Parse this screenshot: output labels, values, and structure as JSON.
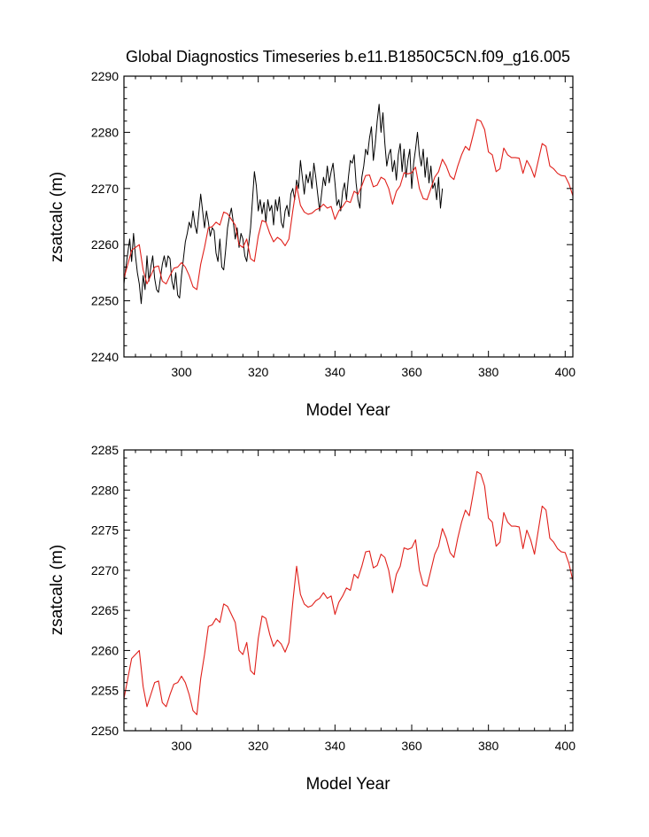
{
  "figure_title": "Global Diagnostics Timeseries b.e11.B1850C5CN.f09_g16.005",
  "colors": {
    "annual": "#000000",
    "smoothed": "#e0201b",
    "frame": "#000000"
  },
  "chart_data": [
    {
      "type": "line",
      "title": "Global Diagnostics Timeseries b.e11.B1850C5CN.f09_g16.005",
      "xlabel": "Model Year",
      "ylabel": "zsatcalc (m)",
      "xlim": [
        285,
        402
      ],
      "ylim": [
        2240,
        2290
      ],
      "xticks": [
        300,
        320,
        340,
        360,
        380,
        400
      ],
      "yticks": [
        2240,
        2250,
        2260,
        2270,
        2280,
        2290
      ],
      "series": [
        {
          "name": "raw",
          "color": "#000000",
          "x_start": 285,
          "x_step": 0.5,
          "values": [
            2253.0,
            2256.0,
            2258.5,
            2261.0,
            2257.0,
            2262.0,
            2258.0,
            2255.0,
            2253.0,
            2249.5,
            2254.5,
            2252.0,
            2258.0,
            2253.5,
            2256.0,
            2258.0,
            2254.0,
            2252.0,
            2251.5,
            2254.0,
            2256.5,
            2258.0,
            2256.0,
            2258.0,
            2257.5,
            2253.5,
            2252.0,
            2255.0,
            2251.0,
            2250.5,
            2254.5,
            2257.5,
            2260.5,
            2262.0,
            2264.0,
            2263.0,
            2266.0,
            2263.5,
            2262.0,
            2265.5,
            2269.0,
            2266.0,
            2263.0,
            2266.0,
            2264.0,
            2261.5,
            2263.0,
            2262.5,
            2258.5,
            2257.0,
            2261.0,
            2256.0,
            2255.5,
            2259.0,
            2263.0,
            2265.0,
            2266.5,
            2264.0,
            2261.0,
            2263.0,
            2259.5,
            2262.0,
            2261.0,
            2258.0,
            2257.0,
            2260.0,
            2263.0,
            2268.0,
            2273.0,
            2270.5,
            2266.0,
            2268.0,
            2265.5,
            2267.5,
            2264.0,
            2268.0,
            2266.0,
            2267.0,
            2263.5,
            2268.0,
            2266.0,
            2268.5,
            2264.0,
            2263.0,
            2266.0,
            2267.0,
            2265.0,
            2269.0,
            2270.0,
            2268.0,
            2271.5,
            2270.0,
            2275.0,
            2272.0,
            2269.0,
            2272.5,
            2271.0,
            2273.0,
            2270.0,
            2274.5,
            2272.0,
            2269.0,
            2266.0,
            2269.0,
            2272.0,
            2270.5,
            2274.0,
            2271.0,
            2273.0,
            2274.5,
            2271.0,
            2267.0,
            2268.0,
            2266.0,
            2269.5,
            2271.0,
            2268.0,
            2272.0,
            2275.0,
            2274.5,
            2276.0,
            2271.0,
            2268.0,
            2266.5,
            2272.0,
            2274.0,
            2277.0,
            2276.0,
            2279.0,
            2281.0,
            2275.0,
            2278.0,
            2282.0,
            2285.0,
            2280.0,
            2283.5,
            2278.0,
            2274.0,
            2276.0,
            2277.0,
            2273.0,
            2275.0,
            2271.5,
            2276.0,
            2278.0,
            2273.0,
            2277.0,
            2272.0,
            2275.0,
            2277.0,
            2270.0,
            2274.5,
            2277.0,
            2280.0,
            2276.0,
            2274.0,
            2277.0,
            2272.0,
            2275.5,
            2271.0,
            2274.0,
            2270.0,
            2271.0,
            2268.0,
            2272.0,
            2266.5,
            2270.0
          ]
        },
        {
          "name": "smoothed",
          "color": "#e0201b",
          "x": [
            285,
            287,
            289,
            290,
            291,
            292,
            293,
            294,
            295,
            296,
            297,
            298,
            299,
            300,
            301,
            302,
            303,
            304,
            305,
            306,
            307,
            308,
            309,
            310,
            311,
            312,
            313,
            314,
            315,
            316,
            317,
            318,
            319,
            320,
            321,
            322,
            323,
            324,
            325,
            326,
            327,
            328,
            329,
            330,
            331,
            332,
            333,
            334,
            335,
            336,
            337,
            338,
            339,
            340,
            341,
            342,
            343,
            344,
            345,
            346,
            347,
            348,
            349,
            350,
            351,
            352,
            353,
            354,
            355,
            356,
            357,
            358,
            359,
            360,
            361,
            362,
            363,
            364,
            365,
            366,
            367,
            368,
            369,
            370,
            371,
            372,
            373,
            374,
            375,
            376,
            377,
            378,
            379,
            380,
            381,
            382,
            383,
            384,
            385,
            386,
            387,
            388,
            389,
            390,
            391,
            392,
            393,
            394,
            395,
            396,
            397,
            398,
            399,
            400,
            401,
            402
          ],
          "values": [
            2254.0,
            2259.0,
            2260.0,
            2255.5,
            2253.0,
            2254.5,
            2256.0,
            2256.2,
            2253.5,
            2253.0,
            2254.5,
            2255.8,
            2256.0,
            2256.8,
            2256.0,
            2254.5,
            2252.5,
            2252.0,
            2256.5,
            2259.5,
            2263.0,
            2263.2,
            2264.0,
            2263.5,
            2265.8,
            2265.5,
            2264.5,
            2263.5,
            2260.0,
            2259.5,
            2261.0,
            2257.5,
            2257.0,
            2261.5,
            2264.3,
            2264.0,
            2262.0,
            2260.5,
            2261.3,
            2260.8,
            2259.8,
            2261.0,
            2266.0,
            2270.5,
            2267.0,
            2265.8,
            2265.4,
            2265.6,
            2266.2,
            2266.5,
            2267.2,
            2266.5,
            2266.8,
            2264.5,
            2266.0,
            2266.8,
            2267.8,
            2267.5,
            2269.5,
            2269.0,
            2270.5,
            2272.3,
            2272.4,
            2270.3,
            2270.6,
            2272.0,
            2271.6,
            2270.0,
            2267.2,
            2269.5,
            2270.5,
            2272.8,
            2272.6,
            2272.8,
            2273.8,
            2270.0,
            2268.2,
            2268.0,
            2270.0,
            2272.0,
            2273.0,
            2275.2,
            2274.0,
            2272.2,
            2271.6,
            2274.0,
            2276.0,
            2277.5,
            2276.8,
            2279.5,
            2282.3,
            2282.0,
            2280.5,
            2276.5,
            2276.0,
            2273.0,
            2273.5,
            2277.2,
            2276.0,
            2275.5,
            2275.5,
            2275.4,
            2272.7,
            2275.0,
            2273.8,
            2272.0,
            2275.0,
            2278.0,
            2277.5,
            2274.0,
            2273.5,
            2272.7,
            2272.3,
            2272.2,
            2270.8,
            2268.7
          ]
        }
      ]
    },
    {
      "type": "line",
      "title": "",
      "xlabel": "Model Year",
      "ylabel": "zsatcalc (m)",
      "xlim": [
        285,
        402
      ],
      "ylim": [
        2250,
        2285
      ],
      "xticks": [
        300,
        320,
        340,
        360,
        380,
        400
      ],
      "yticks": [
        2250,
        2255,
        2260,
        2265,
        2270,
        2275,
        2280,
        2285
      ],
      "series": [
        {
          "name": "smoothed",
          "color": "#e0201b",
          "ref_series": "smoothed"
        }
      ]
    }
  ]
}
